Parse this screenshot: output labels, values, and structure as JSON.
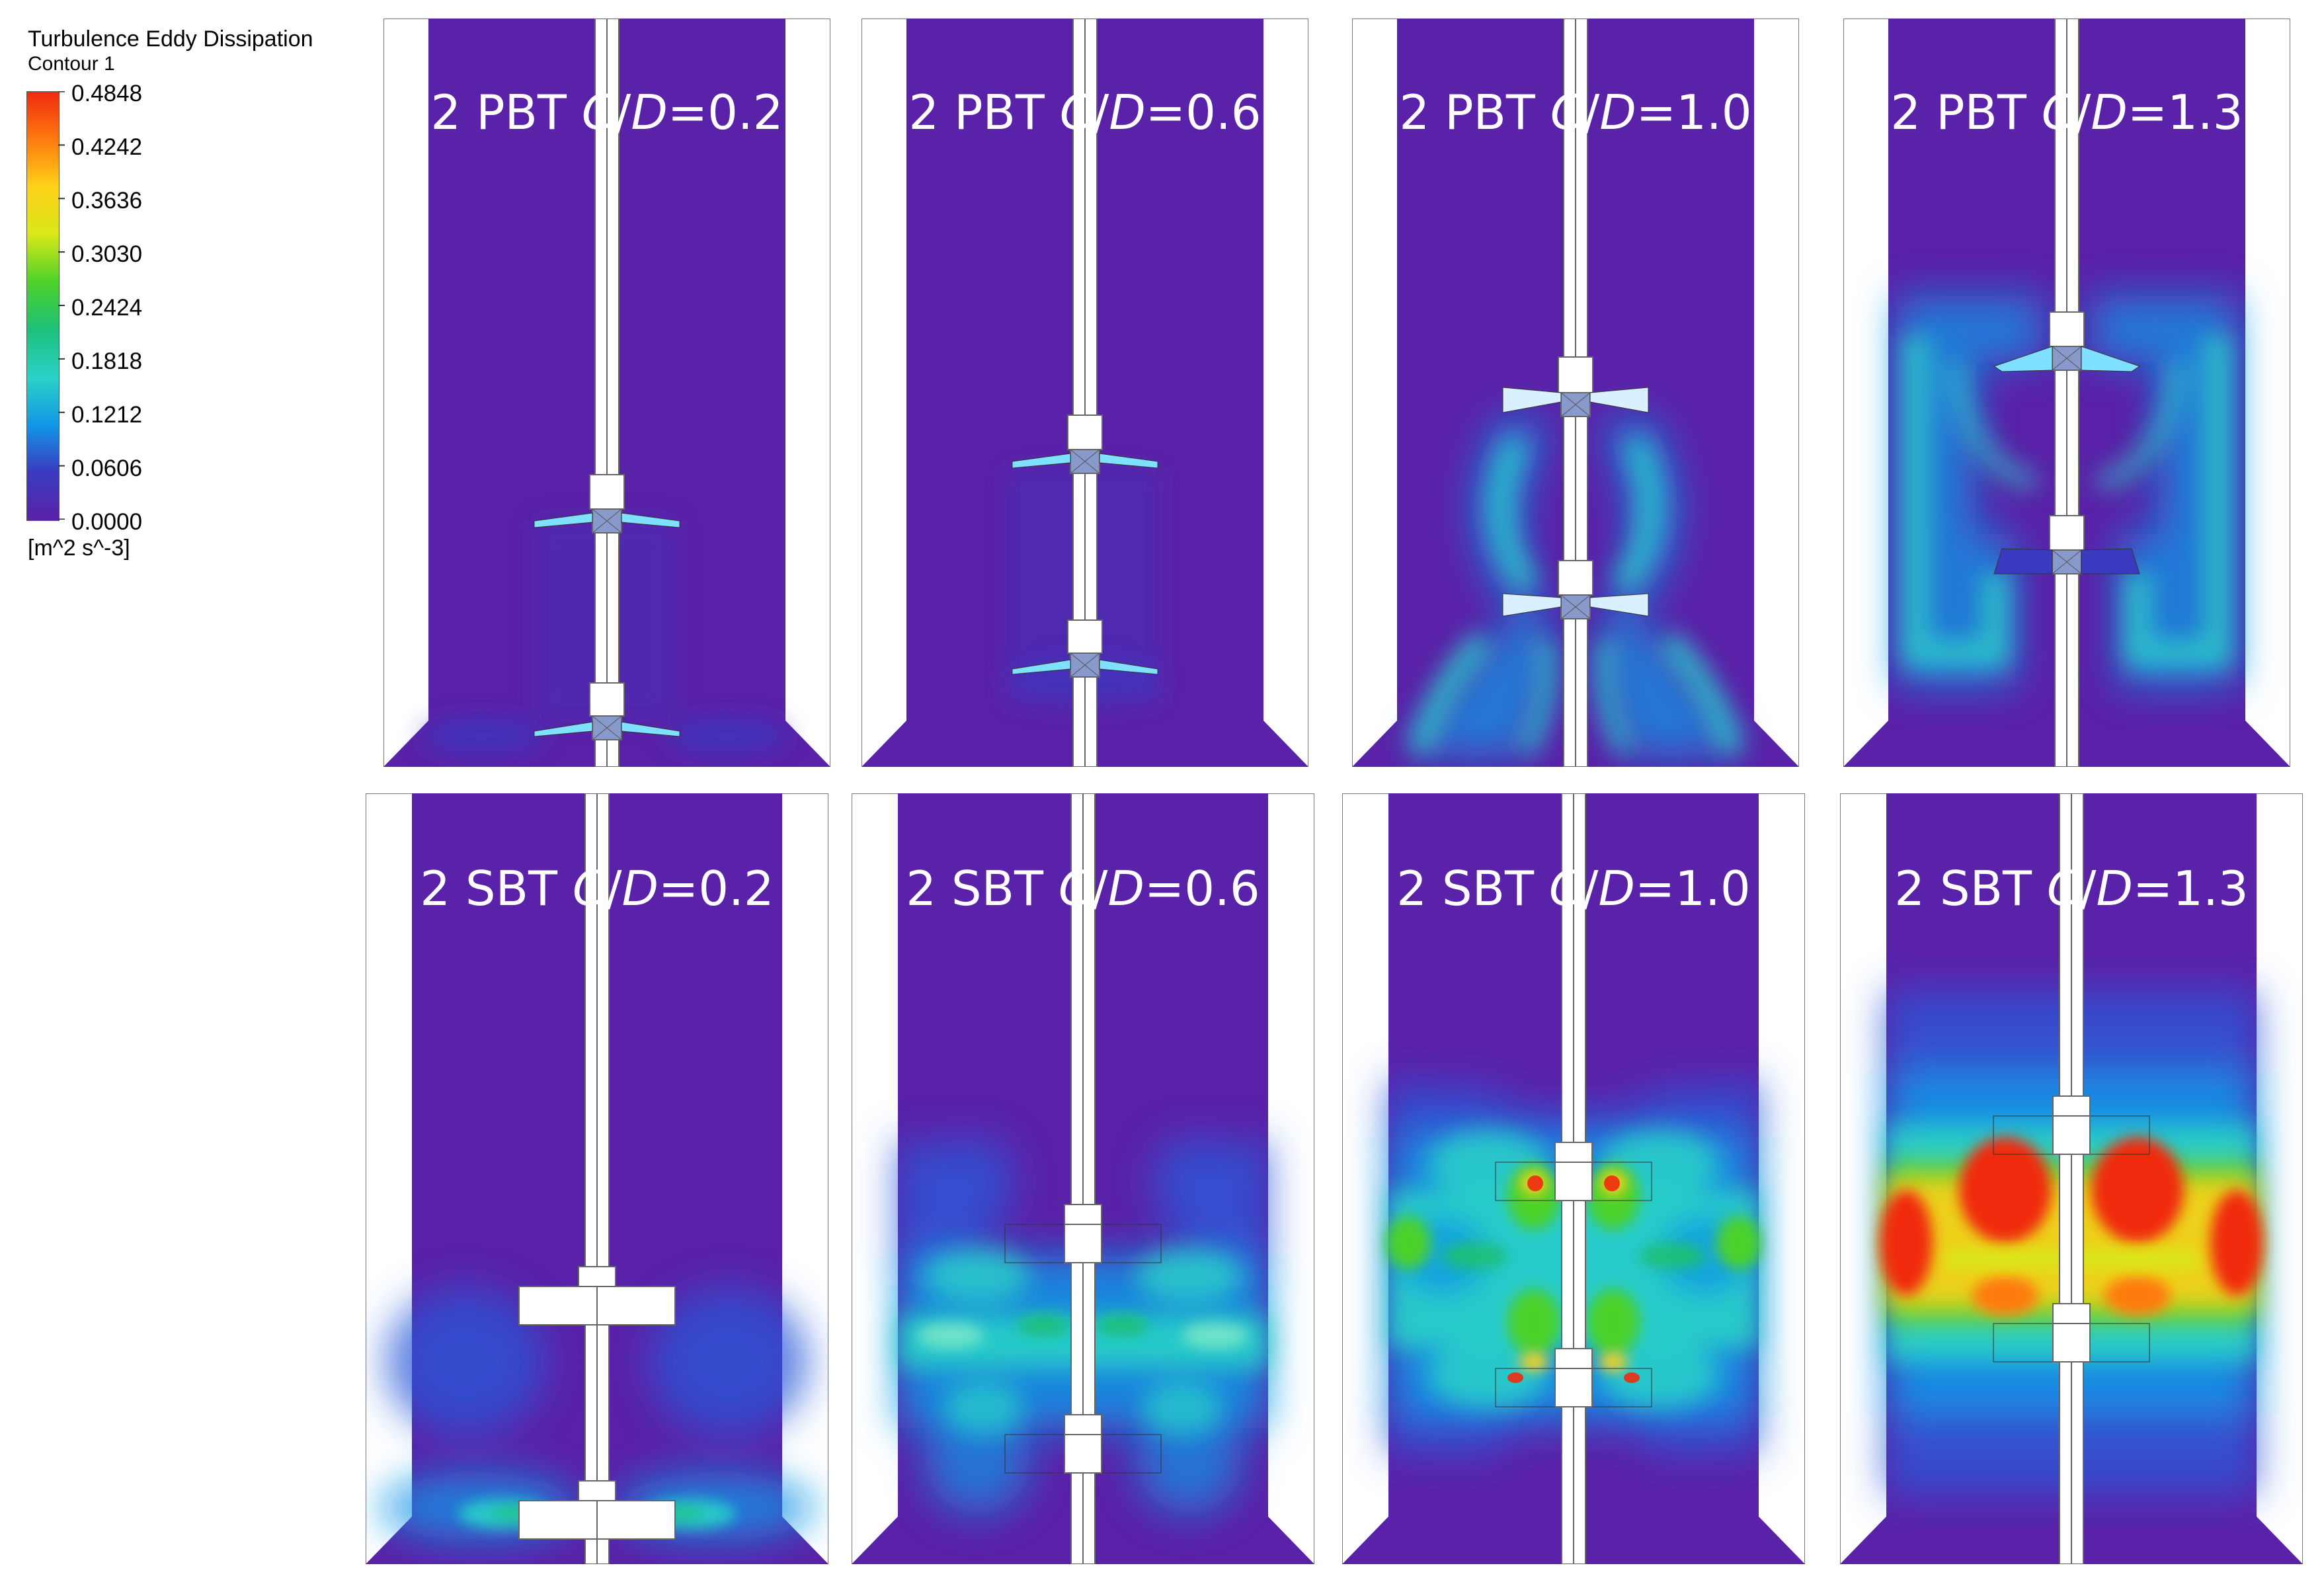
{
  "legend": {
    "title": "Turbulence Eddy Dissipation",
    "subtitle": "Contour 1",
    "ticks": [
      "0.4848",
      "0.4242",
      "0.3636",
      "0.3030",
      "0.2424",
      "0.1818",
      "0.1212",
      "0.0606",
      "0.0000"
    ],
    "units": "[m^2 s^-3]",
    "colors": [
      "#f02a10",
      "#ff7a10",
      "#ffd21a",
      "#d8e818",
      "#4cd22a",
      "#1cc07a",
      "#2ad2c8",
      "#1296e6",
      "#3a3ac0",
      "#5a22a8"
    ]
  },
  "panels": [
    {
      "pre": "2 PBT ",
      "c": "C",
      "slash": "/",
      "d": "D",
      "post": "=0.2"
    },
    {
      "pre": "2 PBT ",
      "c": "C",
      "slash": "/",
      "d": "D",
      "post": "=0.6"
    },
    {
      "pre": "2 PBT ",
      "c": "C",
      "slash": "/",
      "d": "D",
      "post": "=1.0"
    },
    {
      "pre": "2 PBT ",
      "c": "C",
      "slash": "/",
      "d": "D",
      "post": "=1.3"
    },
    {
      "pre": "2 SBT ",
      "c": "C",
      "slash": "/",
      "d": "D",
      "post": "=0.2"
    },
    {
      "pre": "2 SBT ",
      "c": "C",
      "slash": "/",
      "d": "D",
      "post": "=0.6"
    },
    {
      "pre": "2 SBT ",
      "c": "C",
      "slash": "/",
      "d": "D",
      "post": "=1.0"
    },
    {
      "pre": "2 SBT ",
      "c": "C",
      "slash": "/",
      "d": "D",
      "post": "=1.3"
    }
  ]
}
